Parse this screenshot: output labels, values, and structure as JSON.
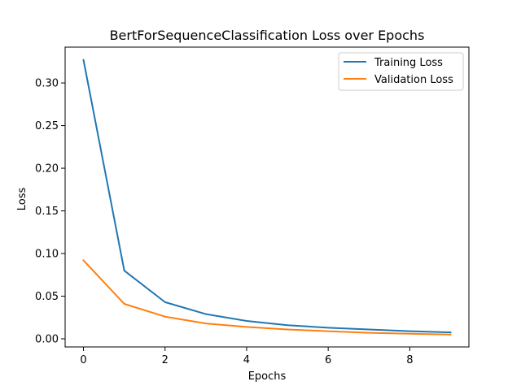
{
  "chart_data": {
    "type": "line",
    "title": "BertForSequenceClassification Loss over Epochs",
    "xlabel": "Epochs",
    "ylabel": "Loss",
    "x": [
      0,
      1,
      2,
      3,
      4,
      5,
      6,
      7,
      8,
      9
    ],
    "xlim": [
      -0.45,
      9.45
    ],
    "ylim": [
      -0.0095,
      0.342
    ],
    "x_ticks": [
      0,
      2,
      4,
      6,
      8
    ],
    "x_tick_labels": [
      "0",
      "2",
      "4",
      "6",
      "8"
    ],
    "y_ticks": [
      0.0,
      0.05,
      0.1,
      0.15,
      0.2,
      0.25,
      0.3
    ],
    "y_tick_labels": [
      "0.00",
      "0.05",
      "0.10",
      "0.15",
      "0.20",
      "0.25",
      "0.30"
    ],
    "grid": false,
    "legend_position": "top-right",
    "series": [
      {
        "name": "Training Loss",
        "color": "#1f77b4",
        "values": [
          0.327,
          0.08,
          0.043,
          0.029,
          0.021,
          0.016,
          0.013,
          0.011,
          0.009,
          0.0075
        ]
      },
      {
        "name": "Validation Loss",
        "color": "#ff7f0e",
        "values": [
          0.092,
          0.041,
          0.026,
          0.018,
          0.014,
          0.011,
          0.009,
          0.007,
          0.006,
          0.005
        ]
      }
    ]
  }
}
